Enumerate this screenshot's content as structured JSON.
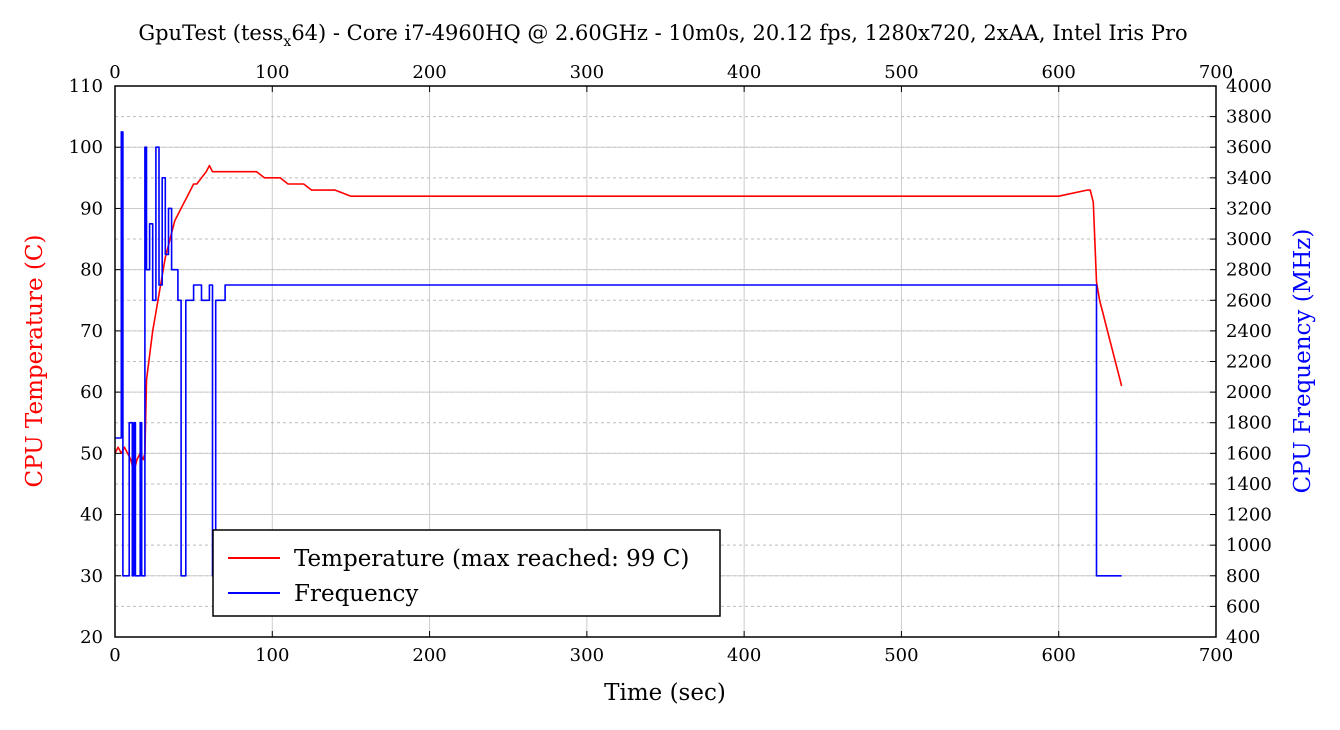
{
  "chart_data": {
    "type": "line",
    "title_parts": {
      "prefix": "GpuTest (tess",
      "subscript": "x",
      "suffix": "64) - Core i7-4960HQ @ 2.60GHz - 10m0s, 20.12 fps, 1280x720, 2xAA, Intel Iris Pro"
    },
    "xlabel": "Time (sec)",
    "ylabel_left": "CPU Temperature (C)",
    "ylabel_right": "CPU Frequency (MHz)",
    "xlim": [
      0,
      700
    ],
    "ylim_left": [
      20,
      110
    ],
    "ylim_right": [
      400,
      4000
    ],
    "x_ticks": [
      "0",
      "100",
      "200",
      "300",
      "400",
      "500",
      "600",
      "700"
    ],
    "top_x_ticks": [
      "0",
      "100",
      "200",
      "300",
      "400",
      "500",
      "600",
      "700"
    ],
    "y_left_ticks": [
      "20",
      "30",
      "40",
      "50",
      "60",
      "70",
      "80",
      "90",
      "100",
      "110"
    ],
    "y_right_ticks": [
      "400",
      "600",
      "800",
      "1000",
      "1200",
      "1400",
      "1600",
      "1800",
      "2000",
      "2200",
      "2400",
      "2600",
      "2800",
      "3000",
      "3200",
      "3400",
      "3600",
      "3800",
      "4000"
    ],
    "grid": true,
    "legend_position": "bottom-left",
    "colors": {
      "temperature": "#ff0000",
      "frequency": "#0000ff",
      "left_label": "#ff0000",
      "right_label": "#0000ff"
    },
    "series": [
      {
        "name": "Temperature (max reached: 99 C)",
        "axis": "left",
        "x": [
          0,
          2,
          4,
          6,
          8,
          10,
          12,
          14,
          16,
          18,
          19,
          20,
          22,
          24,
          26,
          28,
          30,
          32,
          34,
          36,
          38,
          40,
          42,
          44,
          46,
          48,
          50,
          52,
          55,
          58,
          60,
          62,
          65,
          70,
          75,
          80,
          85,
          90,
          95,
          100,
          105,
          110,
          115,
          120,
          125,
          130,
          140,
          150,
          160,
          180,
          200,
          250,
          300,
          350,
          400,
          450,
          500,
          550,
          600,
          618,
          620,
          622,
          624,
          626,
          628,
          630,
          632,
          634,
          636,
          638,
          640
        ],
        "y": [
          50,
          51,
          50,
          51,
          50,
          49,
          47,
          49,
          50,
          49,
          50,
          62,
          66,
          70,
          73,
          76,
          79,
          82,
          84,
          86,
          88,
          89,
          90,
          91,
          92,
          93,
          94,
          94,
          95,
          96,
          97,
          96,
          96,
          96,
          96,
          96,
          96,
          96,
          95,
          95,
          95,
          94,
          94,
          94,
          93,
          93,
          93,
          92,
          92,
          92,
          92,
          92,
          92,
          92,
          92,
          92,
          92,
          92,
          92,
          93,
          93,
          91,
          78,
          75,
          73,
          71,
          69,
          67,
          65,
          63,
          61
        ]
      },
      {
        "name": "Frequency",
        "axis": "right",
        "x": [
          0,
          3,
          4,
          5,
          7,
          9,
          11,
          12,
          13,
          16,
          17,
          19,
          20,
          22,
          24,
          26,
          28,
          30,
          32,
          34,
          36,
          38,
          40,
          42,
          45,
          50,
          55,
          60,
          62,
          64,
          70,
          80,
          90,
          100,
          120,
          140,
          160,
          180,
          200,
          250,
          300,
          350,
          400,
          450,
          500,
          550,
          600,
          620,
          624,
          628,
          636,
          640
        ],
        "y": [
          1700,
          1700,
          3700,
          800,
          800,
          1800,
          800,
          1800,
          800,
          1800,
          800,
          3600,
          2800,
          3100,
          2600,
          3600,
          2700,
          3400,
          2900,
          3200,
          2800,
          2800,
          2600,
          800,
          2600,
          2700,
          2600,
          2700,
          800,
          2600,
          2700,
          2700,
          2700,
          2700,
          2700,
          2700,
          2700,
          2700,
          2700,
          2700,
          2700,
          2700,
          2700,
          2700,
          2700,
          2700,
          2700,
          2700,
          800,
          800,
          800,
          800
        ]
      }
    ]
  }
}
